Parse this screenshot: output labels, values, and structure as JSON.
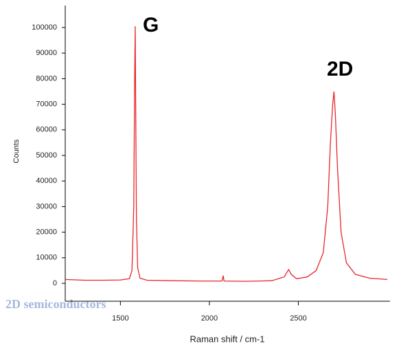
{
  "chart_data": {
    "type": "line",
    "annotations": [
      "G",
      "2D"
    ],
    "watermark": "2D semiconductors",
    "x_label": "Raman shift / cm-1",
    "y_label": "Counts",
    "x": [
      1190,
      1300,
      1400,
      1500,
      1550,
      1565,
      1575,
      1580,
      1583,
      1586,
      1590,
      1597,
      1610,
      1650,
      1800,
      1950,
      2070,
      2078,
      2082,
      2200,
      2350,
      2420,
      2445,
      2460,
      2490,
      2550,
      2600,
      2640,
      2665,
      2680,
      2693,
      2700,
      2708,
      2720,
      2740,
      2770,
      2820,
      2900,
      3000
    ],
    "series": [
      {
        "color": "#e8242b",
        "values": [
          1500,
          1200,
          1200,
          1300,
          1800,
          5000,
          30000,
          80000,
          100500,
          70000,
          25000,
          6000,
          2000,
          1200,
          1000,
          900,
          900,
          3000,
          900,
          800,
          1000,
          2500,
          5400,
          3500,
          1800,
          2500,
          5000,
          12000,
          30000,
          55000,
          70000,
          75000,
          66000,
          45000,
          20000,
          8000,
          3500,
          2000,
          1500
        ]
      }
    ],
    "xlim": [
      1190,
      3015
    ],
    "ylim": [
      -7000,
      108600
    ],
    "xticks": [
      1500,
      2000,
      2500
    ],
    "yticks": [
      0,
      10000,
      20000,
      30000,
      40000,
      50000,
      60000,
      70000,
      80000,
      90000,
      100000
    ],
    "grid": false
  }
}
